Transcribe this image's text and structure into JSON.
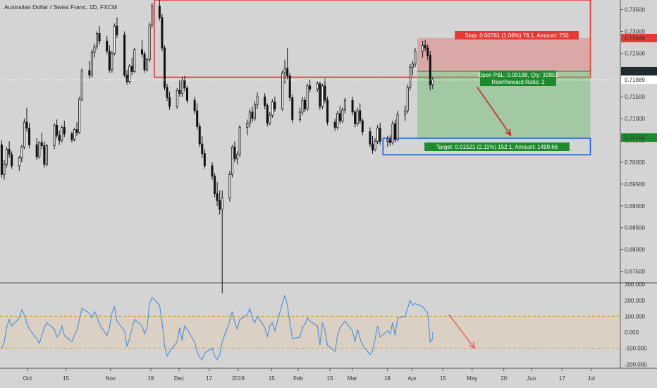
{
  "chart_data": {
    "type": "candlestick",
    "title": "Australian Dollar / Swiss Franc, 1D, FXCM",
    "main_y_ticks": [
      "0.73500",
      "0.73000",
      "0.72500",
      "0.71500",
      "0.71000",
      "0.70500",
      "0.70000",
      "0.69500",
      "0.69000",
      "0.68500",
      "0.68000",
      "0.67500"
    ],
    "main_y_tick_values": [
      0.735,
      0.73,
      0.725,
      0.715,
      0.71,
      0.705,
      0.7,
      0.695,
      0.69,
      0.685,
      0.68,
      0.675
    ],
    "ylim": [
      0.6725,
      0.7372
    ],
    "price_badges": [
      {
        "text": "0.72848",
        "value": 0.72848,
        "color": "#e53935"
      },
      {
        "text": "0.72087",
        "value": 0.72087,
        "color": "#1f2a2e"
      },
      {
        "text": "0.71889",
        "value": 0.71889,
        "color": "#ffffff"
      },
      {
        "text": "0.70566",
        "value": 0.70566,
        "color": "#1e8a2e"
      }
    ],
    "x_ticks": [
      "Oct",
      "15",
      "Nov",
      "19",
      "Dec",
      "17",
      "2019",
      "15",
      "Feb",
      "15",
      "Mar",
      "18",
      "Apr",
      "15",
      "May",
      "20",
      "Jun",
      "17",
      "Jul"
    ],
    "x_tick_days": [
      16,
      61,
      113,
      160,
      193,
      228,
      262,
      301,
      332,
      369,
      395,
      436,
      465,
      501,
      535,
      572,
      604,
      640,
      674
    ],
    "xlim_days": [
      -16,
      708
    ],
    "stop_label": "Stop: 0.00761 (1.06%) 76.1, Amount: 750",
    "target_label": "Target: 0.01521 (2.11%) 152.1, Amount: 1499.66",
    "position_label_1": "Open P&L: 0.00198, Qty: 32851",
    "position_label_2": "Risk/Reward Ratio: 2",
    "position": {
      "start_day": 471,
      "end_day": 673,
      "entry": 0.72087,
      "stop": 0.72848,
      "target": 0.70566,
      "current": 0.71889
    },
    "resistance_box": {
      "start_day": 164,
      "end_day": 673,
      "top": 0.7372,
      "bottom": 0.7195,
      "color": "#e53935"
    },
    "support_box": {
      "start_day": 431,
      "end_day": 673,
      "top": 0.7055,
      "bottom": 0.7017,
      "color": "#1e5fd8"
    },
    "arrow_main": {
      "from_day": 541,
      "from_price": 0.7172,
      "to_day": 580,
      "to_price": 0.7062,
      "color": "#c62828"
    },
    "arrow_osc": {
      "from_day": 508,
      "from_value": 110,
      "to_day": 538,
      "to_value": -100,
      "color": "#e53935"
    },
    "candles": [
      {
        "o": 0.704,
        "h": 0.705,
        "l": 0.6965,
        "c": 0.6972
      },
      {
        "o": 0.6972,
        "h": 0.7005,
        "l": 0.696,
        "c": 0.6995
      },
      {
        "o": 0.6995,
        "h": 0.7035,
        "l": 0.6988,
        "c": 0.703
      },
      {
        "o": 0.703,
        "h": 0.7048,
        "l": 0.701,
        "c": 0.7018
      },
      {
        "o": 0.7018,
        "h": 0.7025,
        "l": 0.6985,
        "c": 0.6992
      },
      {
        "o": 0.6992,
        "h": 0.7015,
        "l": 0.698,
        "c": 0.701
      },
      {
        "o": 0.701,
        "h": 0.704,
        "l": 0.7,
        "c": 0.7035
      },
      {
        "o": 0.7035,
        "h": 0.71,
        "l": 0.703,
        "c": 0.7092
      },
      {
        "o": 0.7092,
        "h": 0.7125,
        "l": 0.707,
        "c": 0.7078
      },
      {
        "o": 0.7078,
        "h": 0.709,
        "l": 0.7032,
        "c": 0.704
      },
      {
        "o": 0.704,
        "h": 0.7055,
        "l": 0.7005,
        "c": 0.7012
      },
      {
        "o": 0.7012,
        "h": 0.7048,
        "l": 0.7008,
        "c": 0.7045
      },
      {
        "o": 0.7045,
        "h": 0.7068,
        "l": 0.703,
        "c": 0.7038
      },
      {
        "o": 0.7038,
        "h": 0.7048,
        "l": 0.6988,
        "c": 0.6995
      },
      {
        "o": 0.6995,
        "h": 0.7042,
        "l": 0.699,
        "c": 0.7038
      },
      {
        "o": 0.7038,
        "h": 0.709,
        "l": 0.703,
        "c": 0.7085
      },
      {
        "o": 0.7085,
        "h": 0.7098,
        "l": 0.7055,
        "c": 0.7062
      },
      {
        "o": 0.7062,
        "h": 0.7072,
        "l": 0.704,
        "c": 0.705
      },
      {
        "o": 0.705,
        "h": 0.7085,
        "l": 0.7045,
        "c": 0.708
      },
      {
        "o": 0.708,
        "h": 0.7095,
        "l": 0.7058,
        "c": 0.7065
      },
      {
        "o": 0.7065,
        "h": 0.707,
        "l": 0.7045,
        "c": 0.7052
      },
      {
        "o": 0.7052,
        "h": 0.7078,
        "l": 0.7048,
        "c": 0.7075
      },
      {
        "o": 0.7075,
        "h": 0.7092,
        "l": 0.706,
        "c": 0.7068
      },
      {
        "o": 0.7068,
        "h": 0.715,
        "l": 0.7065,
        "c": 0.7145
      },
      {
        "o": 0.7145,
        "h": 0.7215,
        "l": 0.714,
        "c": 0.721
      },
      {
        "o": 0.721,
        "h": 0.7232,
        "l": 0.7192,
        "c": 0.72
      },
      {
        "o": 0.72,
        "h": 0.7258,
        "l": 0.7195,
        "c": 0.7252
      },
      {
        "o": 0.7252,
        "h": 0.7272,
        "l": 0.724,
        "c": 0.7265
      },
      {
        "o": 0.7265,
        "h": 0.73,
        "l": 0.7258,
        "c": 0.7295
      },
      {
        "o": 0.7295,
        "h": 0.7312,
        "l": 0.727,
        "c": 0.7278
      },
      {
        "o": 0.7278,
        "h": 0.729,
        "l": 0.7248,
        "c": 0.7255
      },
      {
        "o": 0.7255,
        "h": 0.7268,
        "l": 0.7205,
        "c": 0.7212
      },
      {
        "o": 0.7212,
        "h": 0.7255,
        "l": 0.7205,
        "c": 0.725
      },
      {
        "o": 0.725,
        "h": 0.7318,
        "l": 0.7245,
        "c": 0.7312
      },
      {
        "o": 0.7312,
        "h": 0.7332,
        "l": 0.7285,
        "c": 0.7292
      },
      {
        "o": 0.7292,
        "h": 0.73,
        "l": 0.7195,
        "c": 0.72
      },
      {
        "o": 0.72,
        "h": 0.7212,
        "l": 0.7178,
        "c": 0.7185
      },
      {
        "o": 0.7185,
        "h": 0.7225,
        "l": 0.718,
        "c": 0.722
      },
      {
        "o": 0.722,
        "h": 0.724,
        "l": 0.72,
        "c": 0.7208
      },
      {
        "o": 0.7208,
        "h": 0.7262,
        "l": 0.7205,
        "c": 0.7258
      },
      {
        "o": 0.7258,
        "h": 0.728,
        "l": 0.724,
        "c": 0.7248
      },
      {
        "o": 0.7248,
        "h": 0.7255,
        "l": 0.7205,
        "c": 0.7212
      },
      {
        "o": 0.7212,
        "h": 0.724,
        "l": 0.7208,
        "c": 0.7235
      },
      {
        "o": 0.7235,
        "h": 0.732,
        "l": 0.723,
        "c": 0.7315
      },
      {
        "o": 0.7315,
        "h": 0.7365,
        "l": 0.7308,
        "c": 0.7358
      },
      {
        "o": 0.7358,
        "h": 0.7372,
        "l": 0.7325,
        "c": 0.7332
      },
      {
        "o": 0.7332,
        "h": 0.734,
        "l": 0.7255,
        "c": 0.7262
      },
      {
        "o": 0.7262,
        "h": 0.7268,
        "l": 0.7165,
        "c": 0.7172
      },
      {
        "o": 0.7172,
        "h": 0.718,
        "l": 0.714,
        "c": 0.7148
      },
      {
        "o": 0.7148,
        "h": 0.7162,
        "l": 0.712,
        "c": 0.7128
      },
      {
        "o": 0.7128,
        "h": 0.717,
        "l": 0.7122,
        "c": 0.7165
      },
      {
        "o": 0.7165,
        "h": 0.7188,
        "l": 0.715,
        "c": 0.7158
      },
      {
        "o": 0.7158,
        "h": 0.7195,
        "l": 0.715,
        "c": 0.7188
      },
      {
        "o": 0.7188,
        "h": 0.7198,
        "l": 0.7162,
        "c": 0.717
      },
      {
        "o": 0.717,
        "h": 0.7175,
        "l": 0.7135,
        "c": 0.7142
      },
      {
        "o": 0.7142,
        "h": 0.715,
        "l": 0.711,
        "c": 0.7118
      },
      {
        "o": 0.7118,
        "h": 0.7135,
        "l": 0.7075,
        "c": 0.7082
      },
      {
        "o": 0.7082,
        "h": 0.709,
        "l": 0.7035,
        "c": 0.7042
      },
      {
        "o": 0.7042,
        "h": 0.706,
        "l": 0.701,
        "c": 0.702
      },
      {
        "o": 0.702,
        "h": 0.703,
        "l": 0.6985,
        "c": 0.6992
      },
      {
        "o": 0.6992,
        "h": 0.7,
        "l": 0.696,
        "c": 0.6968
      },
      {
        "o": 0.6968,
        "h": 0.6975,
        "l": 0.692,
        "c": 0.6928
      },
      {
        "o": 0.6928,
        "h": 0.6955,
        "l": 0.69,
        "c": 0.6912
      },
      {
        "o": 0.6912,
        "h": 0.6935,
        "l": 0.688,
        "c": 0.6892
      },
      {
        "o": 0.6892,
        "h": 0.6935,
        "l": 0.67,
        "c": 0.6918
      },
      {
        "o": 0.6918,
        "h": 0.698,
        "l": 0.691,
        "c": 0.6972
      },
      {
        "o": 0.6972,
        "h": 0.704,
        "l": 0.6965,
        "c": 0.7035
      },
      {
        "o": 0.7035,
        "h": 0.7048,
        "l": 0.7,
        "c": 0.7008
      },
      {
        "o": 0.7008,
        "h": 0.7025,
        "l": 0.6995,
        "c": 0.7018
      },
      {
        "o": 0.7018,
        "h": 0.7085,
        "l": 0.7012,
        "c": 0.708
      },
      {
        "o": 0.708,
        "h": 0.7098,
        "l": 0.7062,
        "c": 0.709
      },
      {
        "o": 0.709,
        "h": 0.7122,
        "l": 0.708,
        "c": 0.7115
      },
      {
        "o": 0.7115,
        "h": 0.7128,
        "l": 0.7092,
        "c": 0.71
      },
      {
        "o": 0.71,
        "h": 0.714,
        "l": 0.7095,
        "c": 0.7132
      },
      {
        "o": 0.7132,
        "h": 0.716,
        "l": 0.7122,
        "c": 0.715
      },
      {
        "o": 0.715,
        "h": 0.7158,
        "l": 0.7122,
        "c": 0.713
      },
      {
        "o": 0.713,
        "h": 0.7135,
        "l": 0.7082,
        "c": 0.709
      },
      {
        "o": 0.709,
        "h": 0.7115,
        "l": 0.7085,
        "c": 0.7108
      },
      {
        "o": 0.7108,
        "h": 0.7145,
        "l": 0.7102,
        "c": 0.7138
      },
      {
        "o": 0.7138,
        "h": 0.715,
        "l": 0.7115,
        "c": 0.7122
      },
      {
        "o": 0.7122,
        "h": 0.721,
        "l": 0.7118,
        "c": 0.7205
      },
      {
        "o": 0.7205,
        "h": 0.7235,
        "l": 0.718,
        "c": 0.7215
      },
      {
        "o": 0.7215,
        "h": 0.7262,
        "l": 0.719,
        "c": 0.7198
      },
      {
        "o": 0.7198,
        "h": 0.7205,
        "l": 0.714,
        "c": 0.7148
      },
      {
        "o": 0.7148,
        "h": 0.7155,
        "l": 0.709,
        "c": 0.7098
      },
      {
        "o": 0.7098,
        "h": 0.7125,
        "l": 0.7092,
        "c": 0.7115
      },
      {
        "o": 0.7115,
        "h": 0.715,
        "l": 0.7108,
        "c": 0.7142
      },
      {
        "o": 0.7142,
        "h": 0.715,
        "l": 0.7115,
        "c": 0.7122
      },
      {
        "o": 0.7122,
        "h": 0.718,
        "l": 0.7118,
        "c": 0.7175
      },
      {
        "o": 0.7175,
        "h": 0.719,
        "l": 0.716,
        "c": 0.7168
      },
      {
        "o": 0.7168,
        "h": 0.7185,
        "l": 0.7162,
        "c": 0.718
      },
      {
        "o": 0.718,
        "h": 0.7185,
        "l": 0.712,
        "c": 0.7128
      },
      {
        "o": 0.7128,
        "h": 0.718,
        "l": 0.7122,
        "c": 0.7175
      },
      {
        "o": 0.7175,
        "h": 0.7192,
        "l": 0.7135,
        "c": 0.7142
      },
      {
        "o": 0.7142,
        "h": 0.715,
        "l": 0.7085,
        "c": 0.7092
      },
      {
        "o": 0.7092,
        "h": 0.71,
        "l": 0.7072,
        "c": 0.708
      },
      {
        "o": 0.708,
        "h": 0.7118,
        "l": 0.7075,
        "c": 0.7112
      },
      {
        "o": 0.7112,
        "h": 0.713,
        "l": 0.7088,
        "c": 0.7095
      },
      {
        "o": 0.7095,
        "h": 0.7125,
        "l": 0.709,
        "c": 0.712
      },
      {
        "o": 0.712,
        "h": 0.7148,
        "l": 0.7112,
        "c": 0.7142
      },
      {
        "o": 0.7142,
        "h": 0.715,
        "l": 0.7108,
        "c": 0.7115
      },
      {
        "o": 0.7115,
        "h": 0.712,
        "l": 0.708,
        "c": 0.7088
      },
      {
        "o": 0.7088,
        "h": 0.7125,
        "l": 0.7082,
        "c": 0.7118
      },
      {
        "o": 0.7118,
        "h": 0.7135,
        "l": 0.7088,
        "c": 0.7095
      },
      {
        "o": 0.7095,
        "h": 0.71,
        "l": 0.7062,
        "c": 0.707
      },
      {
        "o": 0.707,
        "h": 0.708,
        "l": 0.7035,
        "c": 0.7042
      },
      {
        "o": 0.7042,
        "h": 0.706,
        "l": 0.702,
        "c": 0.7028
      },
      {
        "o": 0.7028,
        "h": 0.7055,
        "l": 0.7025,
        "c": 0.7048
      },
      {
        "o": 0.7048,
        "h": 0.7085,
        "l": 0.7042,
        "c": 0.7078
      },
      {
        "o": 0.7078,
        "h": 0.709,
        "l": 0.704,
        "c": 0.7048
      },
      {
        "o": 0.7048,
        "h": 0.706,
        "l": 0.7035,
        "c": 0.7052
      },
      {
        "o": 0.7052,
        "h": 0.7062,
        "l": 0.7038,
        "c": 0.7045
      },
      {
        "o": 0.7045,
        "h": 0.7095,
        "l": 0.704,
        "c": 0.7088
      },
      {
        "o": 0.7088,
        "h": 0.7098,
        "l": 0.7045,
        "c": 0.7052
      },
      {
        "o": 0.7052,
        "h": 0.7118,
        "l": 0.7048,
        "c": 0.711
      },
      {
        "o": 0.711,
        "h": 0.713,
        "l": 0.7095,
        "c": 0.7118
      },
      {
        "o": 0.7118,
        "h": 0.7178,
        "l": 0.7112,
        "c": 0.7172
      },
      {
        "o": 0.7172,
        "h": 0.7225,
        "l": 0.7165,
        "c": 0.7218
      },
      {
        "o": 0.7218,
        "h": 0.7232,
        "l": 0.72,
        "c": 0.7225
      },
      {
        "o": 0.7225,
        "h": 0.7262,
        "l": 0.7218,
        "c": 0.7255
      },
      {
        "o": 0.7255,
        "h": 0.7278,
        "l": 0.724,
        "c": 0.7268
      },
      {
        "o": 0.7268,
        "h": 0.728,
        "l": 0.7255,
        "c": 0.7262
      },
      {
        "o": 0.7262,
        "h": 0.727,
        "l": 0.7235,
        "c": 0.7245
      },
      {
        "o": 0.7245,
        "h": 0.7255,
        "l": 0.7165,
        "c": 0.7178
      },
      {
        "o": 0.7178,
        "h": 0.7195,
        "l": 0.7168,
        "c": 0.7189
      }
    ],
    "oscillator": {
      "y_ticks": [
        "300.000",
        "200.000",
        "100.000",
        "0.000",
        "-100.000",
        "-200.000"
      ],
      "y_tick_values": [
        300,
        200,
        100,
        0,
        -100,
        -200
      ],
      "ylim": [
        -225,
        305
      ],
      "upper_band": 100,
      "lower_band": -100,
      "line_color": "#4a8fd8",
      "values": [
        -100,
        -60,
        30,
        80,
        40,
        90,
        140,
        110,
        60,
        20,
        -40,
        -70,
        -20,
        30,
        60,
        20,
        -30,
        -10,
        40,
        -20,
        -60,
        -20,
        10,
        80,
        150,
        120,
        90,
        130,
        100,
        50,
        -20,
        30,
        120,
        160,
        70,
        10,
        -90,
        -40,
        20,
        80,
        40,
        -10,
        30,
        180,
        220,
        170,
        60,
        -80,
        -150,
        -120,
        -60,
        30,
        -50,
        40,
        20,
        -60,
        -120,
        -160,
        -170,
        -130,
        -100,
        -150,
        -170,
        -140,
        -60,
        70,
        130,
        60,
        20,
        80,
        110,
        150,
        90,
        60,
        100,
        30,
        -30,
        40,
        60,
        10,
        180,
        230,
        170,
        60,
        -40,
        -30,
        30,
        50,
        90,
        70,
        40,
        -80,
        60,
        10,
        -80,
        -120,
        -20,
        30,
        50,
        70,
        10,
        -60,
        20,
        -40,
        -80,
        -140,
        -120,
        -40,
        40,
        -30,
        10,
        -10,
        60,
        -20,
        90,
        100,
        150,
        200,
        170,
        180,
        160,
        140,
        120,
        -60,
        -40,
        0
      ]
    }
  }
}
